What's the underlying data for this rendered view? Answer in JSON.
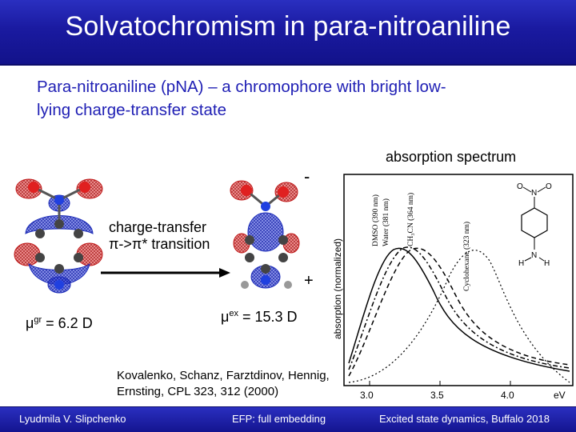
{
  "slide": {
    "title": "Solvatochromism in para-nitroaniline",
    "subtitle_line1": "Para-nitroaniline (pNA) – a chromophore with bright low-",
    "subtitle_line2": "lying charge-transfer state",
    "absorption_label": "absorption spectrum",
    "minus_sign": "-",
    "plus_sign": "+",
    "ct_line1": "charge-transfer",
    "ct_line2": "π->π* transition",
    "mu_gr_symbol": "μ",
    "mu_gr_sup": "gr",
    "mu_gr_value": " = 6.2 D",
    "mu_ex_symbol": "μ",
    "mu_ex_sup": "ex",
    "mu_ex_value": " = 15.3 D",
    "reference_line1": "Kovalenko, Schanz, Farztdinov, Hennig,",
    "reference_line2": "Ernsting, CPL 323, 312 (2000)"
  },
  "spectrum": {
    "y_axis_label": "absorption (normalized)",
    "x_ticks": [
      "3.0",
      "3.5",
      "4.0"
    ],
    "x_unit": "eV",
    "peak_labels": [
      "DMSO (390 nm)",
      "Water (381 nm)",
      "CH₃CN (364 nm)",
      "Cyclohexane (323 nm)"
    ],
    "molecule_labels": {
      "top": "O",
      "n_plus": "N",
      "o_minus": "O",
      "h_left": "H",
      "n_bottom": "N",
      "h_right": "H"
    }
  },
  "footer": {
    "left": "Lyudmila V. Slipchenko",
    "center": "EFP: full embedding",
    "right": "Excited state dynamics, Buffalo 2018"
  },
  "colors": {
    "title_bar": "#1a1aa0",
    "subtitle_text": "#1e1eb4",
    "lobe_blue": "#2a3ad8",
    "lobe_red": "#e02a2a"
  }
}
